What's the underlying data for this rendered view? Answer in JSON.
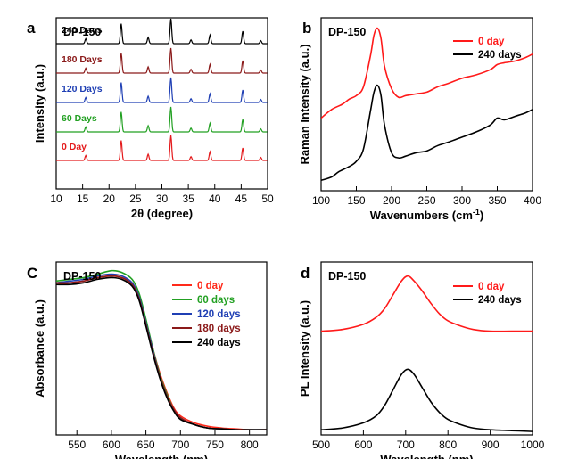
{
  "panel_letters": [
    "a",
    "b",
    "C",
    "d"
  ],
  "chart_data": [
    {
      "panel": "a",
      "type": "line",
      "title": "DP-150",
      "xlabel": "2θ (degree)",
      "ylabel": "Intensity (a.u.)",
      "xlim": [
        10,
        50
      ],
      "xticks": [
        10,
        15,
        20,
        25,
        30,
        35,
        40,
        45,
        50
      ],
      "yticks_shown": false,
      "peak_positions": [
        15.6,
        22.3,
        27.4,
        31.7,
        35.5,
        39.1,
        45.3,
        48.7
      ],
      "peak_relative_intensity": [
        0.2,
        0.8,
        0.25,
        1.0,
        0.15,
        0.35,
        0.5,
        0.12
      ],
      "series": [
        {
          "name": "0 Day",
          "color": "#e41a1c",
          "stack_level": 0
        },
        {
          "name": "60 Days",
          "color": "#22a022",
          "stack_level": 1
        },
        {
          "name": "120 Days",
          "color": "#1f3fb4",
          "stack_level": 2
        },
        {
          "name": "180 Days",
          "color": "#8b1a1a",
          "stack_level": 3
        },
        {
          "name": "240 Days",
          "color": "#000000",
          "stack_level": 4
        }
      ]
    },
    {
      "panel": "b",
      "type": "line",
      "title": "DP-150",
      "xlabel": "Wavenumbers (cm",
      "xlabel_sup": "-1",
      "xlabel_end": ")",
      "ylabel": "Raman Intensity (a.u.)",
      "xlim": [
        100,
        400
      ],
      "xticks": [
        100,
        150,
        200,
        250,
        300,
        350,
        400
      ],
      "yticks_shown": false,
      "legend_position": "top-right",
      "series": [
        {
          "name": "0 day",
          "color": "#ff1a1a",
          "x": [
            100,
            115,
            130,
            140,
            150,
            160,
            170,
            175,
            180,
            185,
            190,
            200,
            210,
            220,
            235,
            250,
            265,
            280,
            300,
            320,
            340,
            350,
            360,
            375,
            390,
            400
          ],
          "y": [
            0.42,
            0.47,
            0.5,
            0.53,
            0.55,
            0.6,
            0.78,
            0.9,
            0.94,
            0.88,
            0.72,
            0.59,
            0.54,
            0.55,
            0.56,
            0.57,
            0.6,
            0.62,
            0.65,
            0.67,
            0.7,
            0.73,
            0.74,
            0.75,
            0.77,
            0.79
          ]
        },
        {
          "name": "240 days",
          "color": "#000000",
          "x": [
            100,
            115,
            125,
            140,
            150,
            160,
            170,
            175,
            180,
            185,
            190,
            200,
            210,
            220,
            235,
            250,
            265,
            280,
            300,
            320,
            340,
            350,
            360,
            375,
            390,
            400
          ],
          "y": [
            0.06,
            0.08,
            0.11,
            0.14,
            0.17,
            0.24,
            0.46,
            0.57,
            0.61,
            0.55,
            0.38,
            0.22,
            0.19,
            0.2,
            0.22,
            0.23,
            0.26,
            0.28,
            0.31,
            0.34,
            0.38,
            0.42,
            0.41,
            0.43,
            0.45,
            0.47
          ]
        }
      ]
    },
    {
      "panel": "C",
      "type": "line",
      "title": "DP-150",
      "xlabel": "Wavelength (nm)",
      "ylabel": "Absorbance (a.u.)",
      "xlim": [
        520,
        825
      ],
      "xticks": [
        550,
        600,
        650,
        700,
        750,
        800
      ],
      "yticks_shown": false,
      "legend_position": "top-right",
      "x": [
        520,
        540,
        560,
        580,
        600,
        615,
        630,
        640,
        650,
        660,
        670,
        680,
        690,
        700,
        720,
        740,
        760,
        780,
        800,
        825
      ],
      "series": [
        {
          "name": "0 day",
          "color": "#ff2a1a",
          "y": [
            0.87,
            0.88,
            0.89,
            0.91,
            0.92,
            0.91,
            0.88,
            0.8,
            0.66,
            0.5,
            0.36,
            0.25,
            0.16,
            0.11,
            0.07,
            0.05,
            0.04,
            0.035,
            0.03,
            0.03
          ]
        },
        {
          "name": "60 days",
          "color": "#22a022",
          "y": [
            0.89,
            0.9,
            0.91,
            0.93,
            0.95,
            0.94,
            0.9,
            0.82,
            0.67,
            0.5,
            0.35,
            0.24,
            0.15,
            0.1,
            0.06,
            0.04,
            0.035,
            0.03,
            0.03,
            0.03
          ]
        },
        {
          "name": "120 days",
          "color": "#1f3fb4",
          "y": [
            0.88,
            0.89,
            0.9,
            0.92,
            0.93,
            0.92,
            0.88,
            0.8,
            0.65,
            0.49,
            0.34,
            0.23,
            0.15,
            0.1,
            0.06,
            0.04,
            0.035,
            0.03,
            0.03,
            0.03
          ]
        },
        {
          "name": "180 days",
          "color": "#8b1a1a",
          "y": [
            0.88,
            0.88,
            0.89,
            0.91,
            0.92,
            0.91,
            0.87,
            0.79,
            0.64,
            0.48,
            0.34,
            0.23,
            0.15,
            0.1,
            0.06,
            0.04,
            0.035,
            0.03,
            0.03,
            0.03
          ]
        },
        {
          "name": "240 days",
          "color": "#000000",
          "y": [
            0.87,
            0.87,
            0.88,
            0.9,
            0.91,
            0.9,
            0.86,
            0.78,
            0.63,
            0.47,
            0.33,
            0.22,
            0.14,
            0.09,
            0.06,
            0.04,
            0.035,
            0.03,
            0.03,
            0.03
          ]
        }
      ]
    },
    {
      "panel": "d",
      "type": "line",
      "title": "DP-150",
      "xlabel": "Wavelength (nm)",
      "ylabel": "PL Intensity (a.u.)",
      "xlim": [
        500,
        1000
      ],
      "xticks": [
        500,
        600,
        700,
        800,
        900,
        1000
      ],
      "yticks_shown": false,
      "legend_position": "top-right",
      "series": [
        {
          "name": "0 day",
          "color": "#ff1a1a",
          "x": [
            500,
            550,
            600,
            630,
            650,
            670,
            690,
            705,
            720,
            740,
            760,
            780,
            800,
            830,
            860,
            900,
            950,
            1000
          ],
          "y": [
            0.6,
            0.61,
            0.64,
            0.68,
            0.73,
            0.81,
            0.89,
            0.92,
            0.89,
            0.83,
            0.76,
            0.7,
            0.66,
            0.63,
            0.61,
            0.6,
            0.6,
            0.6
          ]
        },
        {
          "name": "240 days",
          "color": "#000000",
          "x": [
            500,
            550,
            600,
            630,
            650,
            670,
            690,
            705,
            720,
            740,
            760,
            780,
            800,
            830,
            860,
            900,
            950,
            1000
          ],
          "y": [
            0.03,
            0.04,
            0.07,
            0.11,
            0.17,
            0.26,
            0.35,
            0.38,
            0.35,
            0.27,
            0.19,
            0.13,
            0.09,
            0.06,
            0.04,
            0.03,
            0.025,
            0.02
          ]
        }
      ]
    }
  ]
}
